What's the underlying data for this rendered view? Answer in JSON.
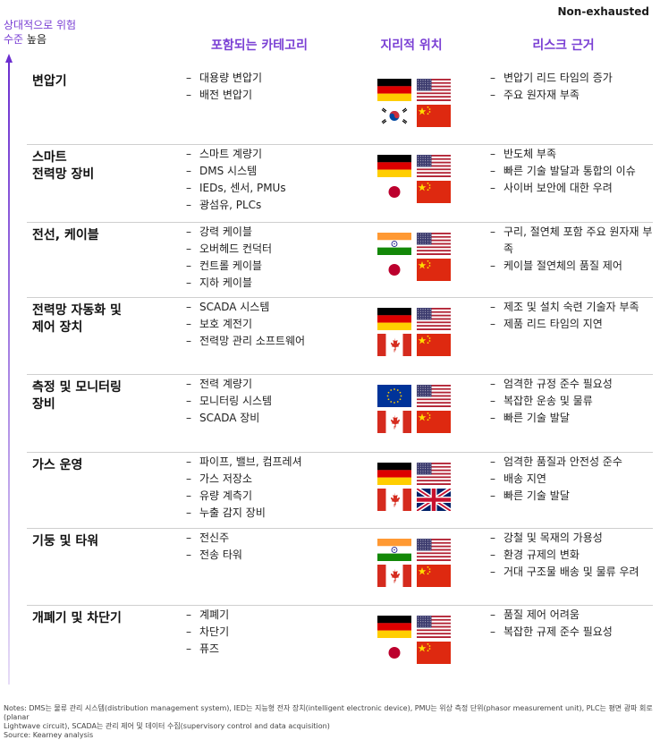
{
  "corner_note": "Non-exhausted",
  "risk_axis": {
    "line1": "상대적으로 위험",
    "line2_a": "수준",
    "line2_b": "높음"
  },
  "headers": {
    "categories": "포함되는 카테고리",
    "geography": "지리적 위치",
    "risks": "리스크 근거"
  },
  "rows": [
    {
      "name": [
        "변압기"
      ],
      "categories": [
        "대용량 변압기",
        "배전 변압기"
      ],
      "flags": [
        "germany-flag",
        "usa-flag",
        "south-korea-flag",
        "china-flag"
      ],
      "risks": [
        "변압기 리드 타임의 증가",
        "주요 원자재 부족"
      ]
    },
    {
      "name": [
        "스마트",
        "전력망 장비"
      ],
      "categories": [
        "스마트 계량기",
        "DMS 시스템",
        "IEDs, 센서, PMUs",
        "광섬유, PLCs"
      ],
      "flags": [
        "germany-flag",
        "usa-flag",
        "japan-flag",
        "china-flag"
      ],
      "risks": [
        "반도체 부족",
        "빠른 기술 발달과 통합의 이슈",
        "사이버 보안에 대한 우려"
      ]
    },
    {
      "name": [
        "전선, 케이블"
      ],
      "categories": [
        "강력 케이블",
        "오버헤드 컨덕터",
        "컨트롤 케이블",
        "지하 케이블"
      ],
      "flags": [
        "india-flag",
        "usa-flag",
        "japan-flag",
        "china-flag"
      ],
      "risks": [
        "구리, 절연체 포함 주요 원자재 부족",
        "케이블 절연체의 품질 제어"
      ]
    },
    {
      "name": [
        "전력망 자동화 및",
        "제어 장치"
      ],
      "categories": [
        "SCADA 시스템",
        "보호 계전기",
        "전력망 관리 소프트웨어"
      ],
      "flags": [
        "germany-flag",
        "usa-flag",
        "canada-flag",
        "china-flag"
      ],
      "risks": [
        "제조 및 설치 숙련 기술자 부족",
        "제품 리드 타임의 지연"
      ]
    },
    {
      "name": [
        "측정 및 모니터링",
        "장비"
      ],
      "categories": [
        "전력 계량기",
        "모니터링 시스템",
        "SCADA 장비"
      ],
      "flags": [
        "eu-flag",
        "usa-flag",
        "canada-flag",
        "china-flag"
      ],
      "risks": [
        "엄격한 규정 준수 필요성",
        "복잡한 운송 및 물류",
        "빠른 기술 발달"
      ]
    },
    {
      "name": [
        "가스 운영"
      ],
      "categories": [
        "파이프, 밸브, 컴프레셔",
        "가스 저장소",
        "유량 계측기",
        "누출 감지 장비"
      ],
      "flags": [
        "germany-flag",
        "usa-flag",
        "canada-flag",
        "uk-flag"
      ],
      "risks": [
        "엄격한 품질과 안전성 준수",
        "배송 지연",
        "빠른 기술 발달"
      ]
    },
    {
      "name": [
        "기둥 및 타워"
      ],
      "categories": [
        "전신주",
        "전송 타워"
      ],
      "flags": [
        "india-flag",
        "usa-flag",
        "canada-flag",
        "china-flag"
      ],
      "risks": [
        "강철 및 목재의 가용성",
        "환경 규제의 변화",
        "거대 구조물 배송 및 물류 우려"
      ]
    },
    {
      "name": [
        "개폐기 및 차단기"
      ],
      "categories": [
        "계폐기",
        "차단기",
        "퓨즈"
      ],
      "flags": [
        "germany-flag",
        "usa-flag",
        "japan-flag",
        "china-flag"
      ],
      "risks": [
        "품질 제어 어려움",
        "복잡한 규제 준수 필요성"
      ]
    }
  ],
  "notes": {
    "line1": "Notes: DMS는 물류 관리 시스템(distribution management system), IED는 지능형 전자 장치(intelligent electronic device), PMU는 위상 측정 단위(phasor measurement unit), PLC는 평면 광파 회로(planar",
    "line2": "Lightwave circuit), SCADA는 관리 제어 및 데이터 수집(supervisory control and data acquisition)",
    "line3": "Source: Kearney analysis"
  },
  "colors": {
    "accent": "#7a3fd4",
    "separator": "#cfcfcf"
  }
}
